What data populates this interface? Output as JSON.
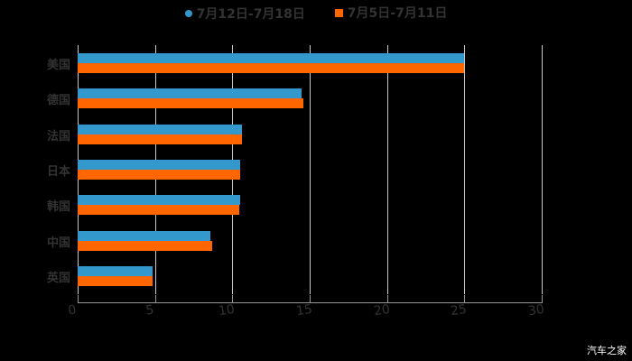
{
  "chart_data": {
    "type": "bar",
    "orientation": "horizontal",
    "title": "",
    "xlabel": "",
    "ylabel": "",
    "categories": [
      "美国",
      "德国",
      "法国",
      "日本",
      "韩国",
      "中国",
      "英国"
    ],
    "series": [
      {
        "name": "7月12日-7月18日",
        "color": "#3399cc",
        "values": [
          25.0,
          14.5,
          10.6,
          10.5,
          10.5,
          8.6,
          4.85
        ]
      },
      {
        "name": "7月5日-7月11日",
        "color": "#ff6600",
        "values": [
          25.0,
          14.6,
          10.6,
          10.5,
          10.45,
          8.7,
          4.85
        ]
      }
    ],
    "xlim": [
      0,
      30
    ],
    "xticks": [
      "0",
      "5",
      "10",
      "15",
      "20",
      "25",
      "30"
    ],
    "grid": true,
    "legend_position": "top"
  },
  "legend": {
    "items": [
      {
        "label": "7月12日-7月18日",
        "color": "#3399cc",
        "marker": "circle"
      },
      {
        "label": "7月5日-7月11日",
        "color": "#ff6600",
        "marker": "square"
      }
    ]
  },
  "watermark": "汽车之家"
}
